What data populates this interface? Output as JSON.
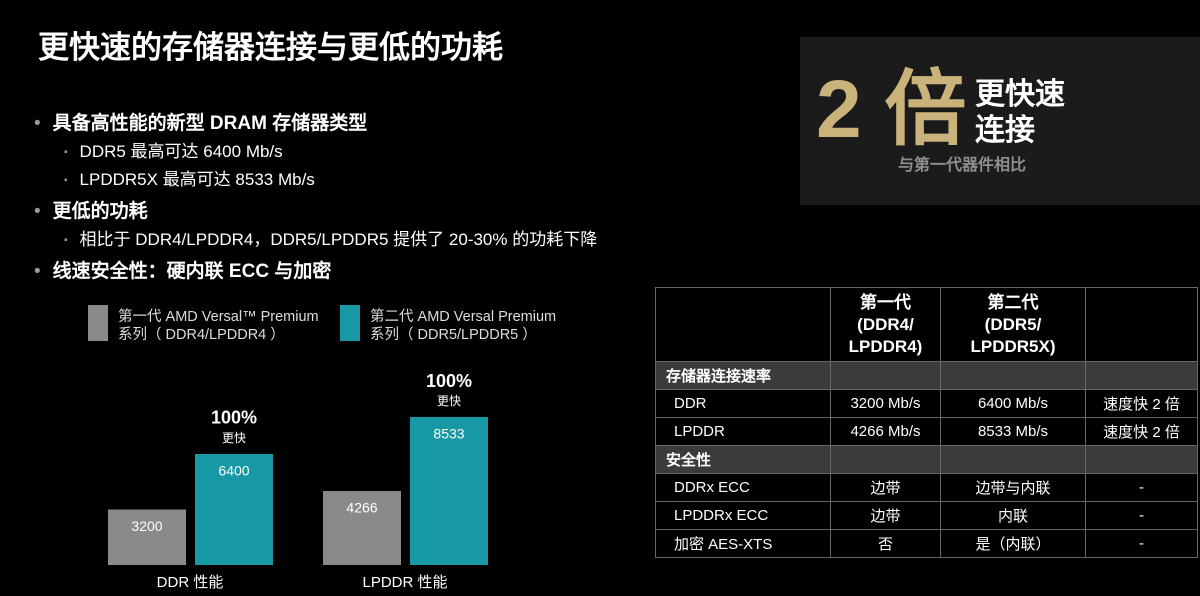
{
  "title": "更快速的存储器连接与更低的功耗",
  "bullets": [
    {
      "text": "具备高性能的新型 DRAM 存储器类型",
      "sub": [
        "DDR5 最高可达 6400 Mb/s",
        "LPDDR5X 最高可达 8533 Mb/s"
      ]
    },
    {
      "text": "更低的功耗",
      "sub": [
        "相比于 DDR4/LPDDR4，DDR5/LPDDR5 提供了 20-30% 的功耗下降"
      ]
    },
    {
      "text": "线速安全性：硬内联 ECC 与加密",
      "sub": []
    }
  ],
  "callout": {
    "big": "2 倍",
    "lines": [
      "更快速",
      "连接"
    ],
    "note": "与第一代器件相比"
  },
  "chart_data": {
    "type": "bar",
    "categories": [
      "DDR 性能",
      "LPDDR 性能"
    ],
    "series": [
      {
        "name": "第一代 AMD Versal™ Premium\n系列（ DDR4/LPDDR4 ）",
        "color": "#8a8a8a",
        "values": [
          3200,
          4266
        ]
      },
      {
        "name": "第二代 AMD Versal Premium\n系列（ DDR5/LPDDR5 ）",
        "color": "#1798a5",
        "values": [
          6400,
          8533
        ]
      }
    ],
    "annotations": [
      {
        "text": "100%",
        "subtext": "更快"
      },
      {
        "text": "100%",
        "subtext": "更快"
      }
    ]
  },
  "table": {
    "columns": [
      "第一代\n(DDR4/\nLPDDR4)",
      "第二代\n(DDR5/\nLPDDR5X)"
    ],
    "sections": [
      {
        "title": "存储器连接速率",
        "rows": [
          [
            "DDR",
            "3200 Mb/s",
            "6400 Mb/s",
            "速度快 2 倍"
          ],
          [
            "LPDDR",
            "4266 Mb/s",
            "8533 Mb/s",
            "速度快 2 倍"
          ]
        ]
      },
      {
        "title": "安全性",
        "rows": [
          [
            "DDRx ECC",
            "边带",
            "边带与内联",
            "-"
          ],
          [
            "LPDDRx ECC",
            "边带",
            "内联",
            "-"
          ],
          [
            "加密 AES-XTS",
            "否",
            "是（内联）",
            "-"
          ]
        ]
      }
    ]
  }
}
